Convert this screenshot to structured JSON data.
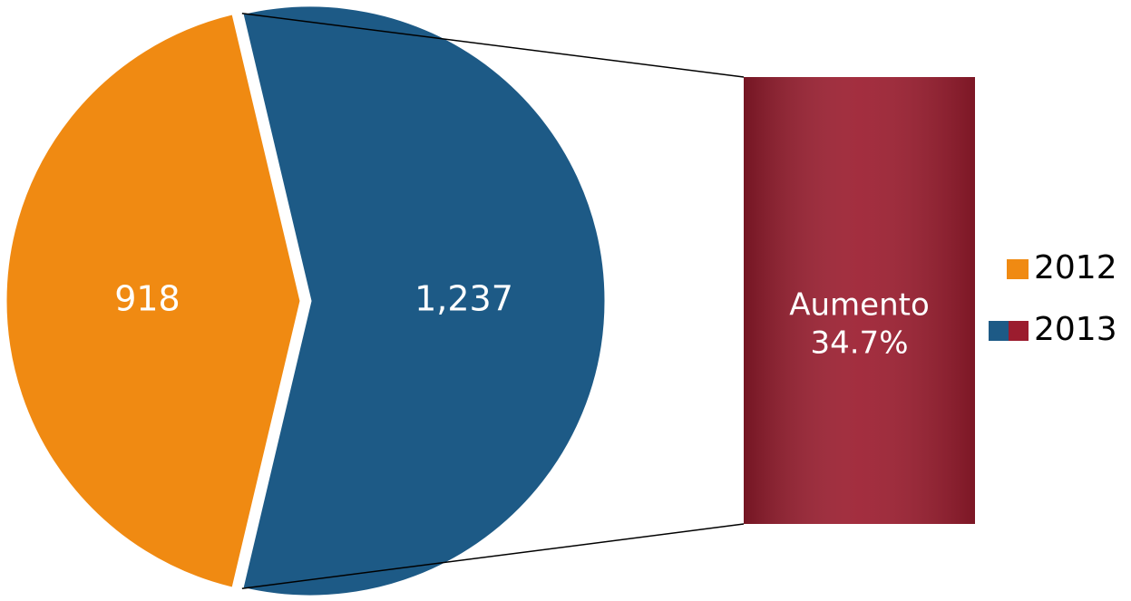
{
  "chart_data": {
    "type": "pie",
    "categories": [
      "2012",
      "2013"
    ],
    "values": [
      918,
      1237
    ],
    "value_labels": [
      "918",
      "1,237"
    ],
    "colors": [
      "#f08a12",
      "#1d5a86"
    ],
    "legend": "right",
    "annotation": {
      "text": "Aumento",
      "value": 34.7,
      "value_label": "34.7%",
      "color": "#9b1c2e"
    }
  }
}
